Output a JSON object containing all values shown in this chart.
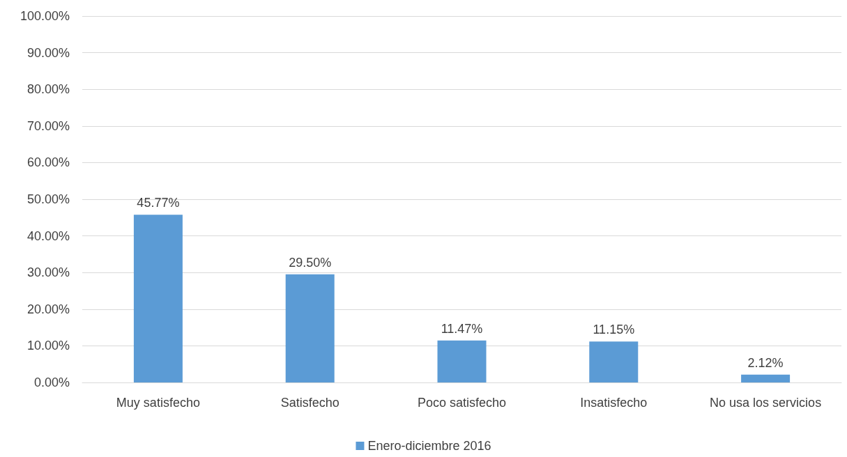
{
  "chart_data": {
    "type": "bar",
    "categories": [
      "Muy satisfecho",
      "Satisfecho",
      "Poco satisfecho",
      "Insatisfecho",
      "No usa los servicios"
    ],
    "series": [
      {
        "name": "Enero-diciembre 2016",
        "color": "#5b9bd5",
        "values": [
          45.77,
          29.5,
          11.47,
          11.15,
          2.12
        ],
        "value_labels": [
          "45.77%",
          "29.50%",
          "11.47%",
          "11.15%",
          "2.12%"
        ]
      }
    ],
    "ylim": [
      0,
      100
    ],
    "yticks": [
      {
        "value": 0,
        "label": "0.00%"
      },
      {
        "value": 10,
        "label": "10.00%"
      },
      {
        "value": 20,
        "label": "20.00%"
      },
      {
        "value": 30,
        "label": "30.00%"
      },
      {
        "value": 40,
        "label": "40.00%"
      },
      {
        "value": 50,
        "label": "50.00%"
      },
      {
        "value": 60,
        "label": "60.00%"
      },
      {
        "value": 70,
        "label": "70.00%"
      },
      {
        "value": 80,
        "label": "80.00%"
      },
      {
        "value": 90,
        "label": "90.00%"
      },
      {
        "value": 100,
        "label": "100.00%"
      }
    ],
    "grid": "y",
    "legend": "bottom"
  }
}
